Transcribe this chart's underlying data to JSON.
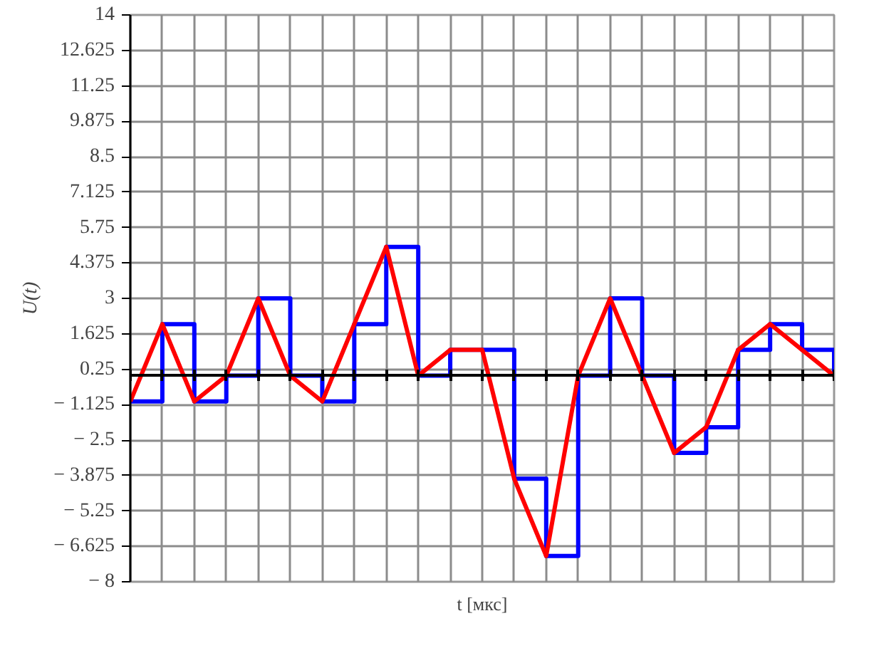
{
  "chart_data": {
    "type": "line",
    "xlabel": "t [мкс]",
    "ylabel": "U(t)",
    "categories": [
      null,
      null,
      null,
      null,
      null,
      null,
      null,
      null,
      null,
      null,
      null,
      null,
      null,
      null,
      null,
      null,
      null,
      null,
      null,
      null,
      null,
      null,
      null
    ],
    "series": [
      {
        "type": "step",
        "color": "#0000ff",
        "values": [
          -1,
          2,
          -1,
          0,
          3,
          0,
          -1,
          2,
          5,
          0,
          1,
          1,
          -4,
          -7,
          0,
          3,
          0,
          -3,
          -2,
          1,
          2,
          1,
          0
        ]
      },
      {
        "color": "#ff0000",
        "values": [
          -1,
          2,
          -1,
          0,
          3,
          0,
          -1,
          2,
          5,
          0,
          1,
          1,
          -4,
          -7,
          0,
          3,
          0,
          -3,
          -2,
          1,
          2,
          1,
          0
        ]
      }
    ],
    "ylim": [
      -8,
      14
    ],
    "yticks": [
      {
        "value": -8,
        "label": "− 8"
      },
      {
        "value": -6.625,
        "label": "− 6.625"
      },
      {
        "value": -5.25,
        "label": "− 5.25"
      },
      {
        "value": -3.875,
        "label": "− 3.875"
      },
      {
        "value": -2.5,
        "label": "− 2.5"
      },
      {
        "value": -1.125,
        "label": "− 1.125"
      },
      {
        "value": 0.25,
        "label": "0.25"
      },
      {
        "value": 1.625,
        "label": "1.625"
      },
      {
        "value": 3,
        "label": "3"
      },
      {
        "value": 4.375,
        "label": "4.375"
      },
      {
        "value": 5.75,
        "label": "5.75"
      },
      {
        "value": 7.125,
        "label": "7.125"
      },
      {
        "value": 8.5,
        "label": "8.5"
      },
      {
        "value": 9.875,
        "label": "9.875"
      },
      {
        "value": 11.25,
        "label": "11.25"
      },
      {
        "value": 12.625,
        "label": "12.625"
      },
      {
        "value": 14,
        "label": "14"
      }
    ],
    "tick_labels": "y",
    "grid": true
  }
}
